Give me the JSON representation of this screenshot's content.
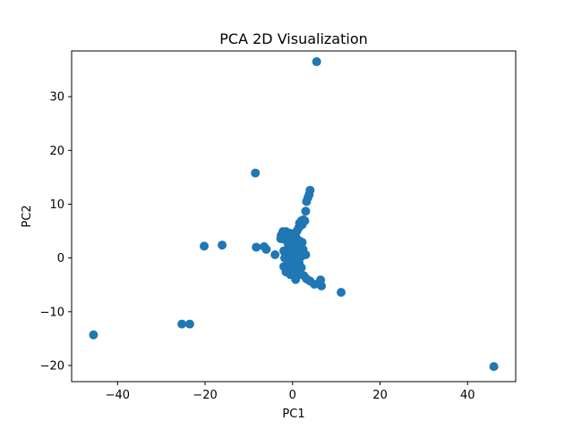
{
  "chart_data": {
    "type": "scatter",
    "title": "PCA 2D Visualization",
    "xlabel": "PC1",
    "ylabel": "PC2",
    "xlim": [
      -50.5,
      51
    ],
    "ylim": [
      -23,
      38.5
    ],
    "xticks": [
      -40,
      -20,
      0,
      20,
      40
    ],
    "yticks": [
      -20,
      -10,
      0,
      10,
      20,
      30
    ],
    "grid": false,
    "marker_color": "#1f77b4",
    "series": [
      {
        "points": [
          [
            5.5,
            36.5
          ],
          [
            -8.5,
            15.8
          ],
          [
            4.0,
            12.6
          ],
          [
            3.8,
            11.8
          ],
          [
            3.5,
            11.2
          ],
          [
            3.2,
            10.5
          ],
          [
            3.0,
            8.7
          ],
          [
            2.5,
            7.1
          ],
          [
            2.0,
            6.9
          ],
          [
            1.6,
            6.5
          ],
          [
            2.2,
            6.2
          ],
          [
            1.4,
            5.6
          ],
          [
            1.0,
            5.0
          ],
          [
            0.3,
            4.5
          ],
          [
            -0.6,
            4.6
          ],
          [
            -1.5,
            4.9
          ],
          [
            -2.2,
            4.9
          ],
          [
            -2.6,
            4.2
          ],
          [
            -2.0,
            3.5
          ],
          [
            -1.2,
            3.9
          ],
          [
            -0.2,
            3.6
          ],
          [
            0.8,
            3.8
          ],
          [
            1.5,
            3.2
          ],
          [
            2.2,
            2.9
          ],
          [
            -1.0,
            2.6
          ],
          [
            0.2,
            2.4
          ],
          [
            1.2,
            2.0
          ],
          [
            -0.5,
            1.5
          ],
          [
            0.6,
            1.0
          ],
          [
            -2.0,
            1.3
          ],
          [
            -1.3,
            0.6
          ],
          [
            -0.2,
            0.2
          ],
          [
            1.0,
            -0.2
          ],
          [
            2.0,
            0.3
          ],
          [
            3.0,
            0.6
          ],
          [
            -0.8,
            -0.6
          ],
          [
            0.3,
            -0.8
          ],
          [
            1.5,
            -0.9
          ],
          [
            -2.0,
            -1.6
          ],
          [
            -1.0,
            -1.9
          ],
          [
            0.0,
            -1.6
          ],
          [
            1.0,
            -2.0
          ],
          [
            2.0,
            -1.8
          ],
          [
            -1.5,
            -2.6
          ],
          [
            -0.5,
            -3.1
          ],
          [
            0.5,
            -2.8
          ],
          [
            1.6,
            -3.0
          ],
          [
            2.6,
            -3.3
          ],
          [
            3.2,
            -3.9
          ],
          [
            4.0,
            -4.3
          ],
          [
            5.0,
            -4.9
          ],
          [
            6.4,
            -4.1
          ],
          [
            6.6,
            -5.2
          ],
          [
            11.1,
            -6.4
          ],
          [
            -4.0,
            0.6
          ],
          [
            -6.5,
            2.1
          ],
          [
            -6.0,
            1.6
          ],
          [
            -8.3,
            2.0
          ],
          [
            -16.1,
            2.4
          ],
          [
            -20.2,
            2.2
          ],
          [
            -23.5,
            -12.3
          ],
          [
            -25.3,
            -12.3
          ],
          [
            -45.5,
            -14.3
          ],
          [
            46.0,
            -20.2
          ],
          [
            2.8,
            6.9
          ],
          [
            -2.7,
            3.6
          ],
          [
            2.4,
            1.6
          ],
          [
            -1.8,
            0.0
          ],
          [
            0.7,
            -4.0
          ]
        ]
      }
    ]
  }
}
